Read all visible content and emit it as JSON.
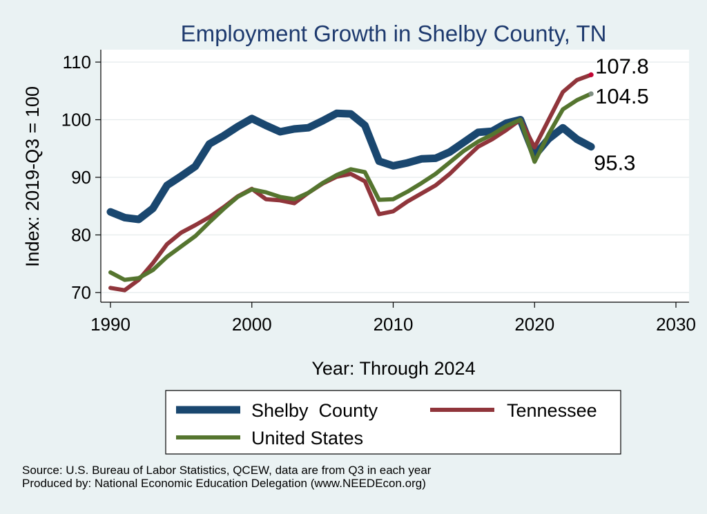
{
  "chart_data": {
    "type": "line",
    "title": "Employment Growth in Shelby County, TN",
    "xlabel": "Year: Through 2024",
    "ylabel": "Index: 2019-Q3 = 100",
    "xlim": [
      1990,
      2030
    ],
    "ylim": [
      70,
      110
    ],
    "xticks": [
      1990,
      2000,
      2010,
      2020,
      2030
    ],
    "yticks": [
      70,
      80,
      90,
      100,
      110
    ],
    "grid": true,
    "legend": "bottom",
    "x": [
      1990,
      1991,
      1992,
      1993,
      1994,
      1995,
      1996,
      1997,
      1998,
      1999,
      2000,
      2001,
      2002,
      2003,
      2004,
      2005,
      2006,
      2007,
      2008,
      2009,
      2010,
      2011,
      2012,
      2013,
      2014,
      2015,
      2016,
      2017,
      2018,
      2019,
      2020,
      2021,
      2022,
      2023,
      2024
    ],
    "series": [
      {
        "name": "Shelby  County",
        "color": "#1a476f",
        "values": [
          84.0,
          83.0,
          82.7,
          84.6,
          88.6,
          90.2,
          91.9,
          95.8,
          97.2,
          98.8,
          100.2,
          99.0,
          97.9,
          98.4,
          98.6,
          99.8,
          101.1,
          101.0,
          99.0,
          92.8,
          92.0,
          92.5,
          93.2,
          93.3,
          94.4,
          96.1,
          97.8,
          98.0,
          99.4,
          100.0,
          93.8,
          96.7,
          98.6,
          96.6,
          95.3
        ],
        "end_label": "95.3",
        "end_marker_color": "#1a476f"
      },
      {
        "name": "Tennessee",
        "color": "#90353b",
        "values": [
          70.8,
          70.4,
          72.2,
          75.1,
          78.4,
          80.4,
          81.7,
          83.1,
          84.8,
          86.7,
          88.0,
          86.2,
          86.0,
          85.5,
          87.3,
          88.9,
          90.1,
          90.6,
          89.3,
          83.6,
          84.1,
          85.8,
          87.2,
          88.6,
          90.6,
          93.0,
          95.3,
          96.6,
          98.2,
          100.0,
          95.2,
          100.0,
          104.8,
          106.9,
          107.8
        ],
        "end_label": "107.8",
        "end_marker_color": "#c10534"
      },
      {
        "name": "United States",
        "color": "#55752f",
        "values": [
          73.5,
          72.2,
          72.5,
          73.9,
          76.2,
          78.0,
          79.8,
          82.2,
          84.5,
          86.6,
          87.9,
          87.4,
          86.6,
          86.2,
          87.3,
          89.0,
          90.4,
          91.4,
          90.9,
          86.1,
          86.2,
          87.5,
          89.0,
          90.6,
          92.6,
          94.6,
          96.2,
          97.4,
          98.9,
          100.0,
          92.7,
          97.5,
          101.8,
          103.4,
          104.5
        ],
        "end_label": "104.5",
        "end_marker_color": "#7f8f82"
      }
    ]
  },
  "footer": {
    "source_line": "Source: U.S. Bureau of Labor Statistics, QCEW, data are from Q3 in each year",
    "produced_line": "Produced by: National Economic Education Delegation (www.NEEDEcon.org)"
  }
}
